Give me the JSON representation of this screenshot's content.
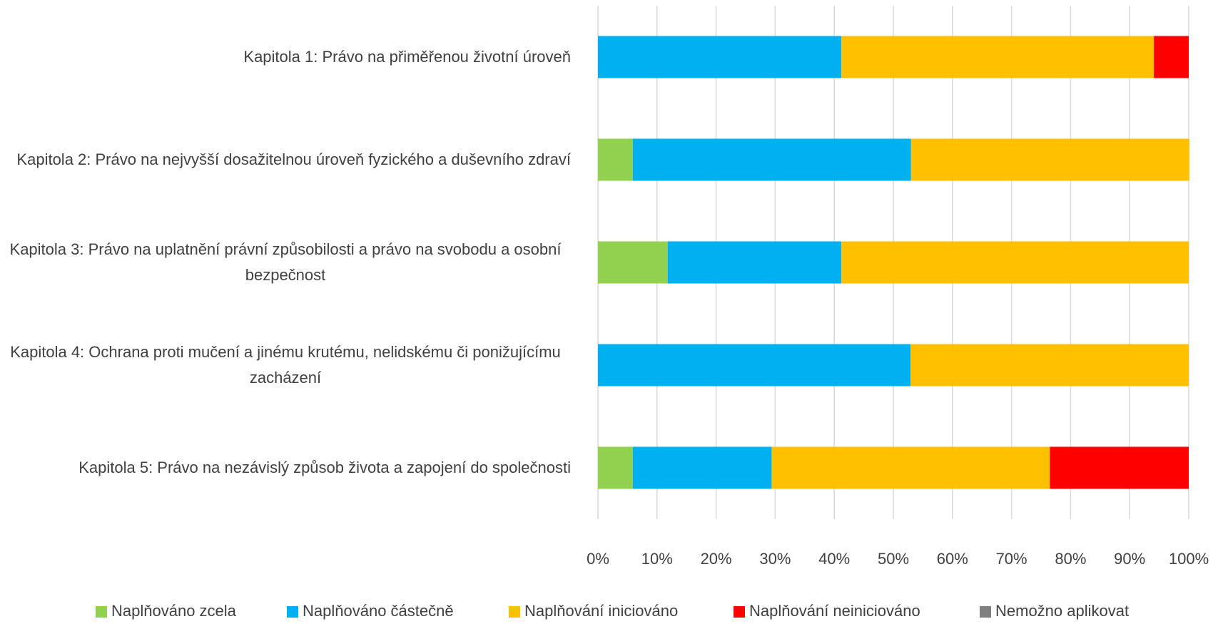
{
  "chart_data": {
    "type": "stacked-bar-horizontal",
    "categories": [
      "Kapitola 1: Právo na přiměřenou životní úroveň",
      "Kapitola 2: Právo na nejvyšší dosažitelnou úroveň fyzického a duševního zdraví",
      "Kapitola 3: Právo na uplatnění právní způsobilosti a právo na svobodu a osobní bezpečnost",
      "Kapitola 4: Ochrana proti mučení a jinému krutému, nelidskému či ponižujícímu zacházení",
      "Kapitola 5: Právo na nezávislý způsob života a zapojení do společnosti"
    ],
    "series": [
      {
        "name": "Naplňováno zcela",
        "color": "#92d050",
        "values": [
          0,
          5.9,
          11.8,
          0,
          5.9
        ]
      },
      {
        "name": "Naplňováno částečně",
        "color": "#00b0f0",
        "values": [
          41.2,
          47.1,
          29.4,
          52.9,
          23.5
        ]
      },
      {
        "name": "Naplňování iniciováno",
        "color": "#ffc000",
        "values": [
          52.9,
          47.1,
          58.8,
          47.1,
          47.1
        ]
      },
      {
        "name": "Naplňování neiniciováno",
        "color": "#ff0000",
        "values": [
          5.9,
          0,
          0,
          0,
          23.5
        ]
      },
      {
        "name": "Nemožno aplikovat",
        "color": "#808080",
        "values": [
          0,
          0,
          0,
          0,
          0
        ]
      }
    ],
    "xlim": [
      0,
      100
    ],
    "xticks": [
      {
        "value": 0,
        "label": "0%"
      },
      {
        "value": 10,
        "label": "10%"
      },
      {
        "value": 20,
        "label": "20%"
      },
      {
        "value": 30,
        "label": "30%"
      },
      {
        "value": 40,
        "label": "40%"
      },
      {
        "value": 50,
        "label": "50%"
      },
      {
        "value": 60,
        "label": "60%"
      },
      {
        "value": 70,
        "label": "70%"
      },
      {
        "value": 80,
        "label": "80%"
      },
      {
        "value": 90,
        "label": "90%"
      },
      {
        "value": 100,
        "label": "100%"
      }
    ],
    "grid": true,
    "legend": "bottom"
  }
}
